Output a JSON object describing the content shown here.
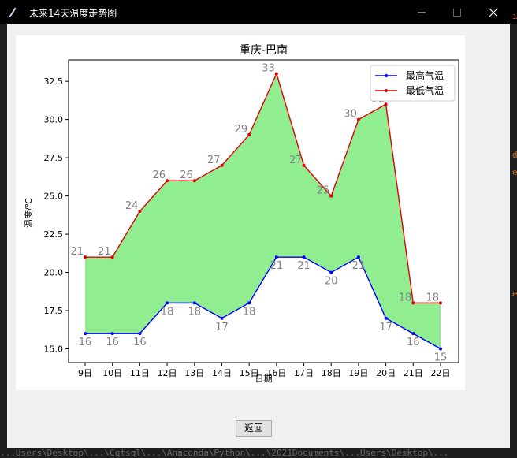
{
  "window": {
    "title": "未来14天温度走势图",
    "controls": [
      "minimize-icon",
      "maximize-icon",
      "close-icon"
    ]
  },
  "back_button": {
    "label": "返回"
  },
  "background_terminal": {
    "bottom_line": "...Users\\Desktop\\...\\Cqtsql\\...\\Anaconda\\Python\\...\\2021Documents\\...Users\\Desktop\\..."
  },
  "colors": {
    "high_line": "#0000ff",
    "low_line": "#e00000",
    "fill": "#90ee90",
    "label": "#808080"
  },
  "chart_data": {
    "type": "line",
    "title": "重庆-巴南",
    "xlabel": "日期",
    "ylabel": "温度/℃",
    "categories": [
      "9日",
      "10日",
      "11日",
      "12日",
      "13日",
      "14日",
      "15日",
      "16日",
      "17日",
      "18日",
      "19日",
      "20日",
      "21日",
      "22日"
    ],
    "series": [
      {
        "name": "最高气温",
        "color": "#0000ff",
        "values": [
          16,
          16,
          16,
          18,
          18,
          17,
          18,
          21,
          21,
          20,
          21,
          17,
          16,
          15
        ]
      },
      {
        "name": "最低气温",
        "color": "#e00000",
        "values": [
          21,
          21,
          24,
          26,
          26,
          27,
          29,
          33,
          27,
          25,
          30,
          31,
          18,
          18
        ]
      }
    ],
    "ylim": [
      14.1,
      33.9
    ],
    "yticks": [
      15.0,
      17.5,
      20.0,
      22.5,
      25.0,
      27.5,
      30.0,
      32.5
    ],
    "legend": "top-right",
    "grid": false,
    "fill_between": true
  }
}
